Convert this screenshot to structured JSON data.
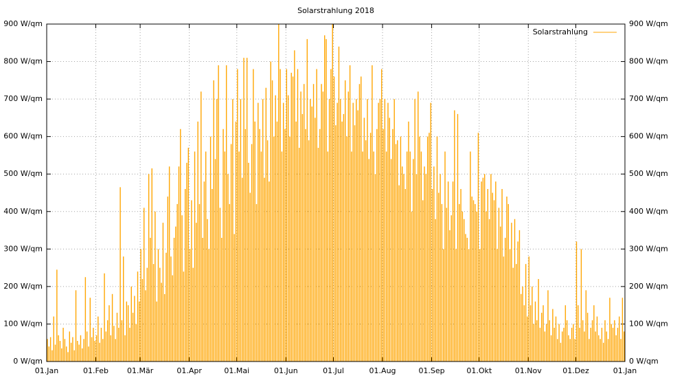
{
  "chart_data": {
    "type": "bar",
    "title": "Solarstrahlung 2018",
    "series": [
      {
        "name": "Solarstrahlung",
        "color": "#ffa500",
        "x": [
          0,
          1,
          2,
          3,
          4,
          5,
          6,
          7,
          8,
          9,
          10,
          11,
          12,
          13,
          14,
          15,
          16,
          17,
          18,
          19,
          20,
          21,
          22,
          23,
          24,
          25,
          26,
          27,
          28,
          29,
          30,
          31,
          32,
          33,
          34,
          35,
          36,
          37,
          38,
          39,
          40,
          41,
          42,
          43,
          44,
          45,
          46,
          47,
          48,
          49,
          50,
          51,
          52,
          53,
          54,
          55,
          56,
          57,
          58,
          59,
          60,
          61,
          62,
          63,
          64,
          65,
          66,
          67,
          68,
          69,
          70,
          71,
          72,
          73,
          74,
          75,
          76,
          77,
          78,
          79,
          80,
          81,
          82,
          83,
          84,
          85,
          86,
          87,
          88,
          89,
          90,
          91,
          92,
          93,
          94,
          95,
          96,
          97,
          98,
          99,
          100,
          101,
          102,
          103,
          104,
          105,
          106,
          107,
          108,
          109,
          110,
          111,
          112,
          113,
          114,
          115,
          116,
          117,
          118,
          119,
          120,
          121,
          122,
          123,
          124,
          125,
          126,
          127,
          128,
          129,
          130,
          131,
          132,
          133,
          134,
          135,
          136,
          137,
          138,
          139,
          140,
          141,
          142,
          143,
          144,
          145,
          146,
          147,
          148,
          149,
          150,
          151,
          152,
          153,
          154,
          155,
          156,
          157,
          158,
          159,
          160,
          161,
          162,
          163,
          164,
          165,
          166,
          167,
          168,
          169,
          170,
          171,
          172,
          173,
          174,
          175,
          176,
          177,
          178,
          179,
          180,
          181,
          182,
          183,
          184,
          185,
          186,
          187,
          188,
          189,
          190,
          191,
          192,
          193,
          194,
          195,
          196,
          197,
          198,
          199,
          200,
          201,
          202,
          203,
          204,
          205,
          206,
          207,
          208,
          209,
          210,
          211,
          212,
          213,
          214,
          215,
          216,
          217,
          218,
          219,
          220,
          221,
          222,
          223,
          224,
          225,
          226,
          227,
          228,
          229,
          230,
          231,
          232,
          233,
          234,
          235,
          236,
          237,
          238,
          239,
          240,
          241,
          242,
          243,
          244,
          245,
          246,
          247,
          248,
          249,
          250,
          251,
          252,
          253,
          254,
          255,
          256,
          257,
          258,
          259,
          260,
          261,
          262,
          263,
          264,
          265,
          266,
          267,
          268,
          269,
          270,
          271,
          272,
          273,
          274,
          275,
          276,
          277,
          278,
          279,
          280,
          281,
          282,
          283,
          284,
          285,
          286,
          287,
          288,
          289,
          290,
          291,
          292,
          293,
          294,
          295,
          296,
          297,
          298,
          299,
          300,
          301,
          302,
          303,
          304,
          305,
          306,
          307,
          308,
          309,
          310,
          311,
          312,
          313,
          314,
          315,
          316,
          317,
          318,
          319,
          320,
          321,
          322,
          323,
          324,
          325,
          326,
          327,
          328,
          329,
          330,
          331,
          332,
          333,
          334,
          335,
          336,
          337,
          338,
          339,
          340,
          341,
          342,
          343,
          344,
          345,
          346,
          347,
          348,
          349,
          350,
          351,
          352,
          353,
          354,
          355,
          356,
          357,
          358,
          359,
          360,
          361,
          362,
          363,
          364
        ],
        "values": [
          60,
          40,
          65,
          30,
          120,
          45,
          245,
          70,
          55,
          35,
          90,
          60,
          40,
          25,
          80,
          50,
          65,
          30,
          190,
          55,
          45,
          70,
          35,
          60,
          225,
          80,
          40,
          170,
          65,
          90,
          55,
          70,
          120,
          50,
          90,
          60,
          235,
          80,
          110,
          150,
          70,
          180,
          95,
          60,
          130,
          90,
          465,
          110,
          280,
          70,
          160,
          150,
          90,
          200,
          130,
          175,
          100,
          240,
          160,
          300,
          220,
          410,
          190,
          250,
          500,
          330,
          515,
          260,
          400,
          160,
          300,
          250,
          210,
          370,
          180,
          290,
          440,
          520,
          280,
          230,
          330,
          360,
          420,
          520,
          620,
          390,
          240,
          460,
          530,
          570,
          300,
          430,
          250,
          560,
          370,
          640,
          420,
          720,
          330,
          480,
          560,
          380,
          300,
          600,
          460,
          750,
          540,
          700,
          790,
          410,
          330,
          620,
          560,
          790,
          500,
          420,
          580,
          700,
          340,
          640,
          780,
          560,
          700,
          490,
          810,
          620,
          810,
          530,
          450,
          580,
          780,
          640,
          420,
          690,
          620,
          560,
          700,
          490,
          730,
          590,
          480,
          800,
          750,
          600,
          710,
          640,
          900,
          780,
          560,
          690,
          620,
          780,
          710,
          600,
          770,
          760,
          830,
          640,
          780,
          570,
          720,
          660,
          740,
          620,
          860,
          590,
          700,
          680,
          740,
          650,
          780,
          570,
          620,
          740,
          720,
          870,
          860,
          560,
          700,
          780,
          900,
          760,
          630,
          690,
          840,
          700,
          640,
          660,
          750,
          600,
          720,
          790,
          560,
          690,
          630,
          700,
          670,
          740,
          760,
          560,
          650,
          590,
          700,
          540,
          610,
          790,
          560,
          500,
          620,
          690,
          700,
          780,
          620,
          700,
          560,
          690,
          650,
          540,
          620,
          700,
          580,
          590,
          470,
          600,
          520,
          500,
          460,
          560,
          640,
          560,
          400,
          540,
          700,
          500,
          720,
          600,
          560,
          430,
          520,
          500,
          600,
          610,
          690,
          460,
          520,
          380,
          600,
          450,
          500,
          420,
          300,
          560,
          410,
          480,
          350,
          390,
          480,
          670,
          300,
          660,
          420,
          460,
          400,
          380,
          340,
          330,
          300,
          560,
          440,
          430,
          420,
          400,
          610,
          300,
          480,
          490,
          500,
          400,
          460,
          380,
          500,
          450,
          430,
          480,
          300,
          410,
          360,
          460,
          280,
          330,
          440,
          420,
          300,
          370,
          250,
          380,
          260,
          320,
          350,
          180,
          200,
          150,
          260,
          120,
          280,
          150,
          200,
          100,
          160,
          110,
          220,
          90,
          130,
          150,
          80,
          100,
          190,
          110,
          70,
          140,
          90,
          120,
          60,
          100,
          50,
          80,
          90,
          150,
          110,
          70,
          60,
          90,
          100,
          60,
          320,
          150,
          90,
          300,
          110,
          80,
          190,
          130,
          60,
          90,
          110,
          150,
          80,
          120,
          70,
          60,
          90,
          50,
          110,
          80,
          60,
          170,
          100,
          90,
          110,
          70,
          90,
          120,
          60,
          170,
          80
        ]
      }
    ],
    "xlim": [
      0,
      365
    ],
    "xticks": [
      {
        "value": 0,
        "label": "01.Jan"
      },
      {
        "value": 31,
        "label": "01.Feb"
      },
      {
        "value": 59,
        "label": "01.Mär"
      },
      {
        "value": 90,
        "label": "01.Apr"
      },
      {
        "value": 120,
        "label": "01.Mai"
      },
      {
        "value": 151,
        "label": "01.Jun"
      },
      {
        "value": 181,
        "label": "01.Jul"
      },
      {
        "value": 212,
        "label": "01.Aug"
      },
      {
        "value": 243,
        "label": "01.Sep"
      },
      {
        "value": 273,
        "label": "01.Okt"
      },
      {
        "value": 304,
        "label": "01.Nov"
      },
      {
        "value": 334,
        "label": "01.Dez"
      },
      {
        "value": 365,
        "label": "01.Jan"
      }
    ],
    "ylim": [
      0,
      900
    ],
    "yticks": [
      {
        "value": 0,
        "label": "0 W/qm"
      },
      {
        "value": 100,
        "label": "100 W/qm"
      },
      {
        "value": 200,
        "label": "200 W/qm"
      },
      {
        "value": 300,
        "label": "300 W/qm"
      },
      {
        "value": 400,
        "label": "400 W/qm"
      },
      {
        "value": 500,
        "label": "500 W/qm"
      },
      {
        "value": 600,
        "label": "600 W/qm"
      },
      {
        "value": 700,
        "label": "700 W/qm"
      },
      {
        "value": 800,
        "label": "800 W/qm"
      },
      {
        "value": 900,
        "label": "900 W/qm"
      }
    ],
    "grid": true,
    "legend": "top-right"
  }
}
